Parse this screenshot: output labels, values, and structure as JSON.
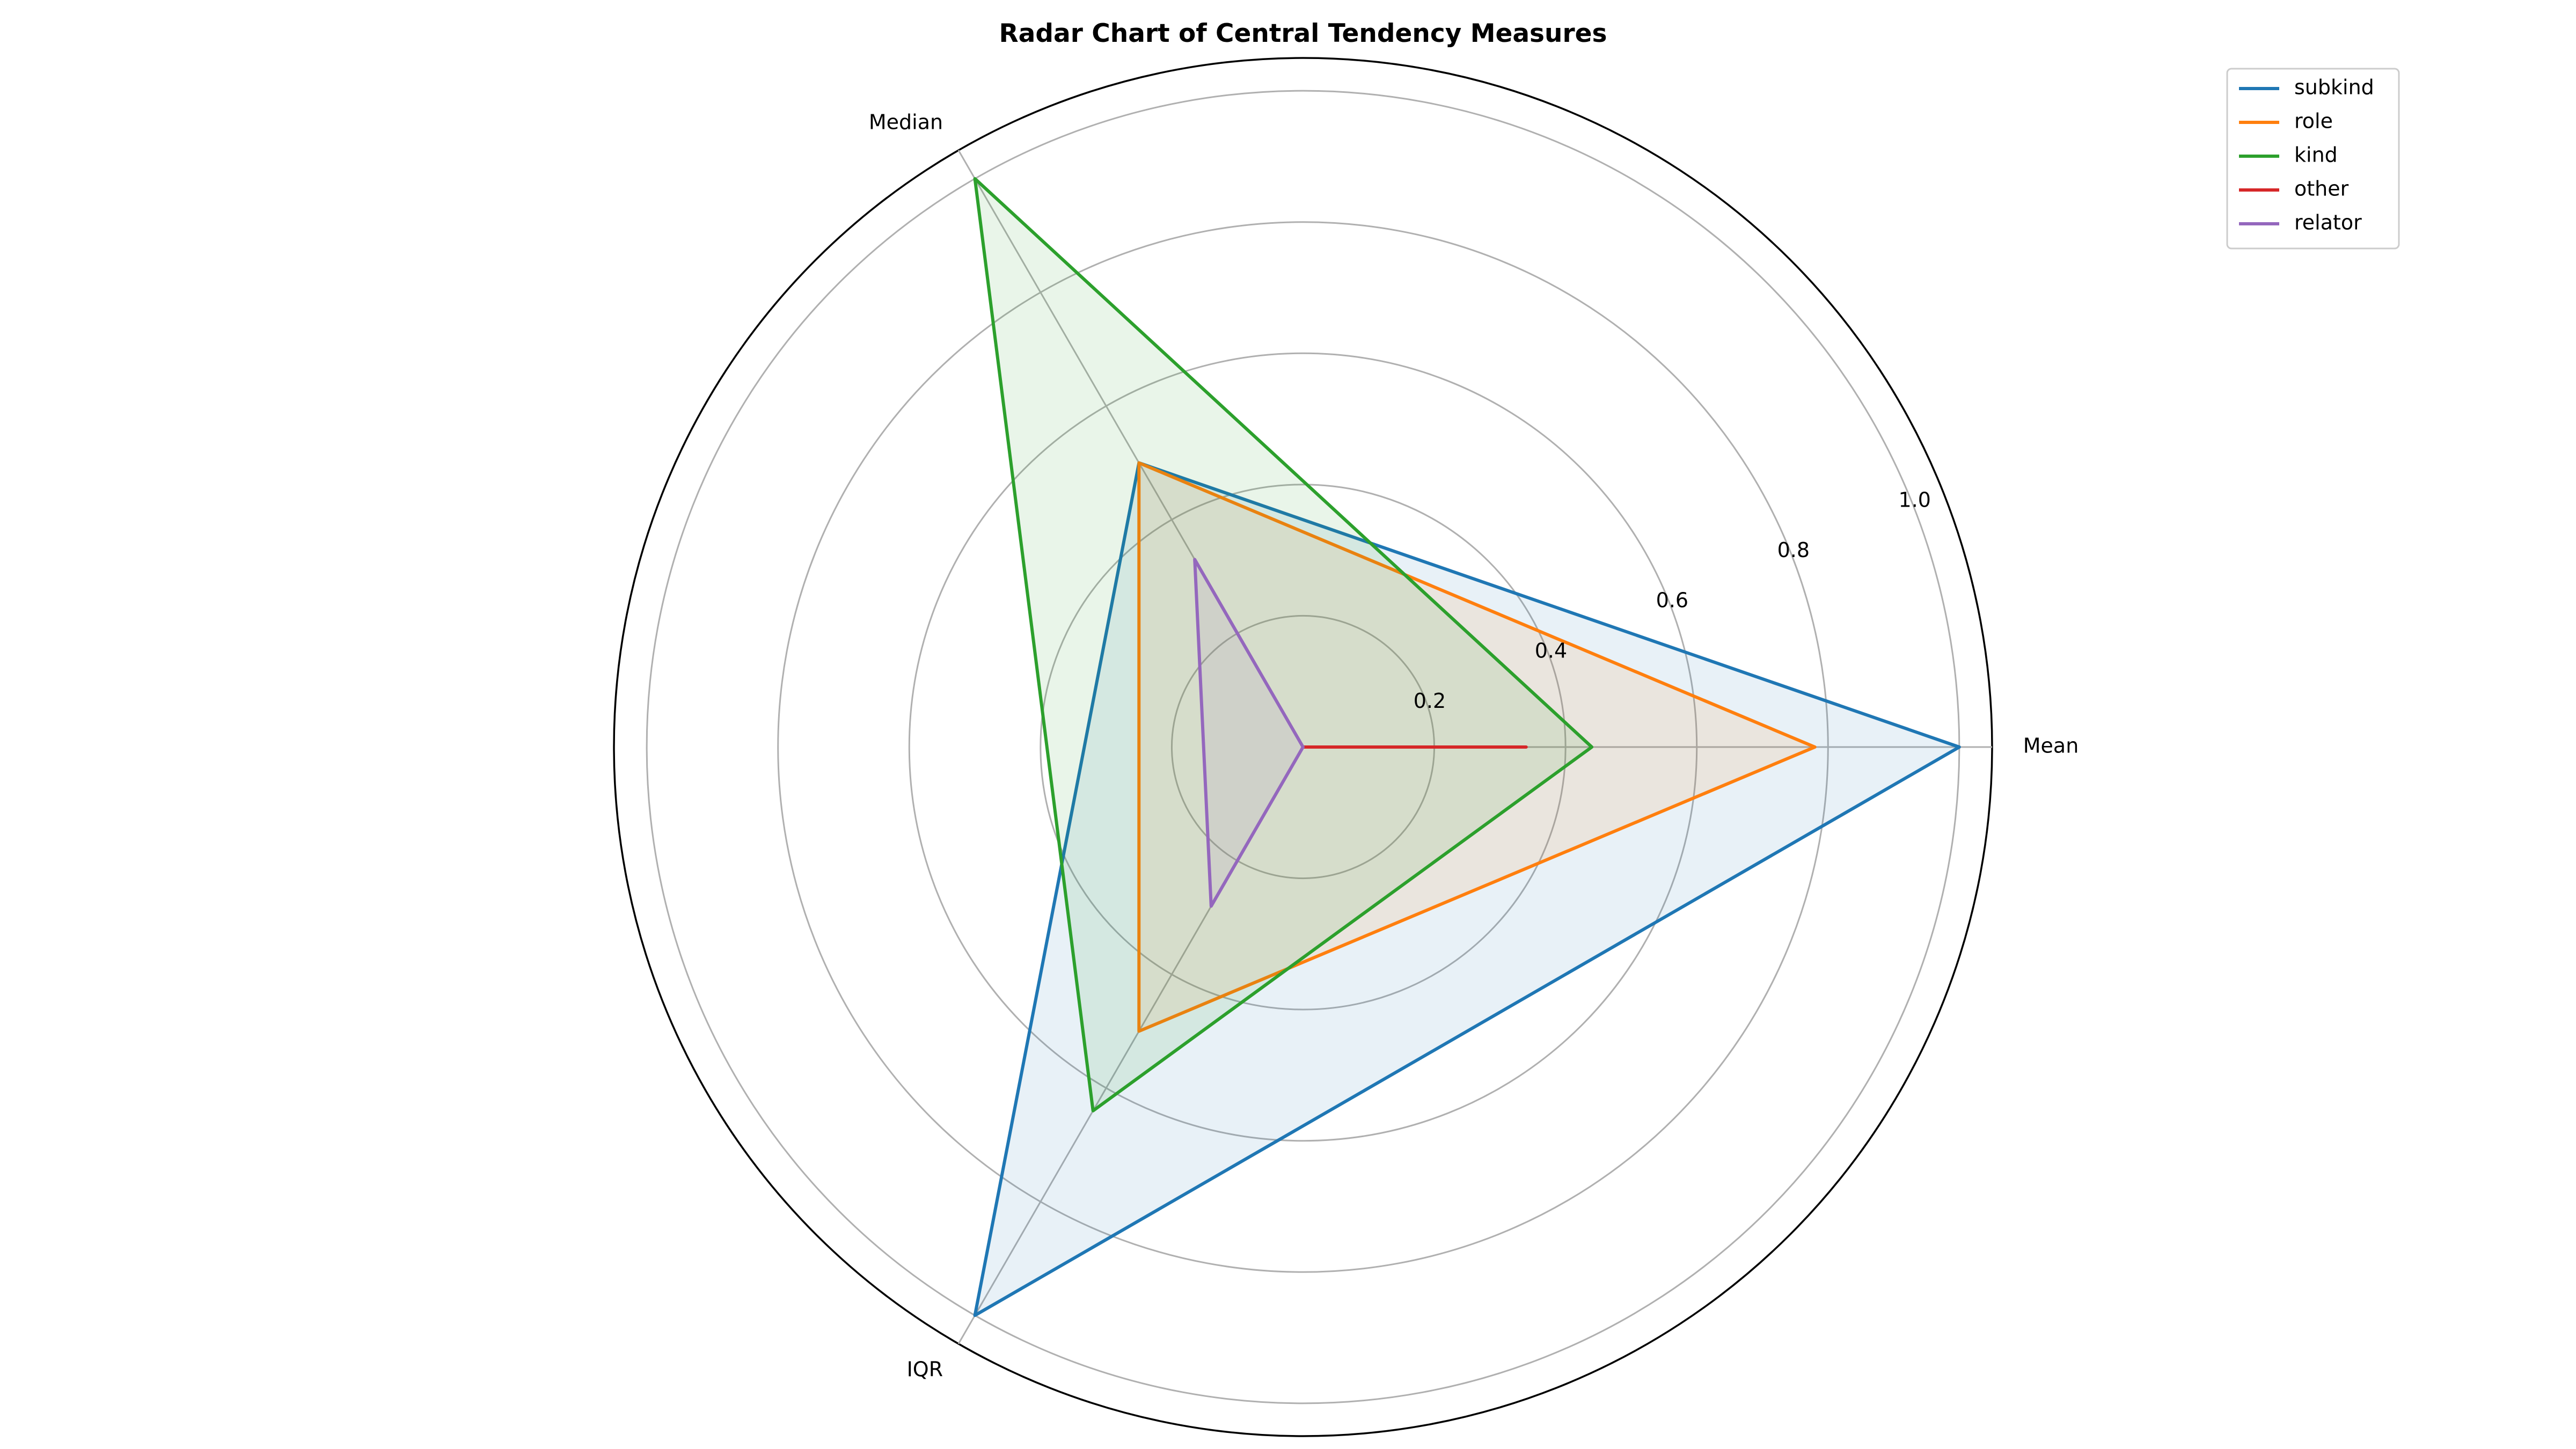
{
  "chart_data": {
    "type": "radar",
    "title": "Radar Chart of Central Tendency Measures",
    "axes": [
      "Mean",
      "Median",
      "IQR"
    ],
    "rlim": [
      0,
      1.05
    ],
    "r_ticks": [
      0.2,
      0.4,
      0.6,
      0.8,
      1.0
    ],
    "r_tick_labels": [
      "0.2",
      "0.4",
      "0.6",
      "0.8",
      "1.0"
    ],
    "grid": true,
    "legend_position": "top-right",
    "series": [
      {
        "name": "subkind",
        "color": "#1f77b4",
        "values": [
          1.0,
          0.5,
          1.0
        ]
      },
      {
        "name": "role",
        "color": "#ff7f0e",
        "values": [
          0.78,
          0.5,
          0.5
        ]
      },
      {
        "name": "kind",
        "color": "#2ca02c",
        "values": [
          0.44,
          1.0,
          0.64
        ]
      },
      {
        "name": "other",
        "color": "#d62728",
        "values": [
          0.34,
          0.0,
          0.0
        ]
      },
      {
        "name": "relator",
        "color": "#9467bd",
        "values": [
          0.0,
          0.33,
          0.28
        ]
      }
    ]
  }
}
